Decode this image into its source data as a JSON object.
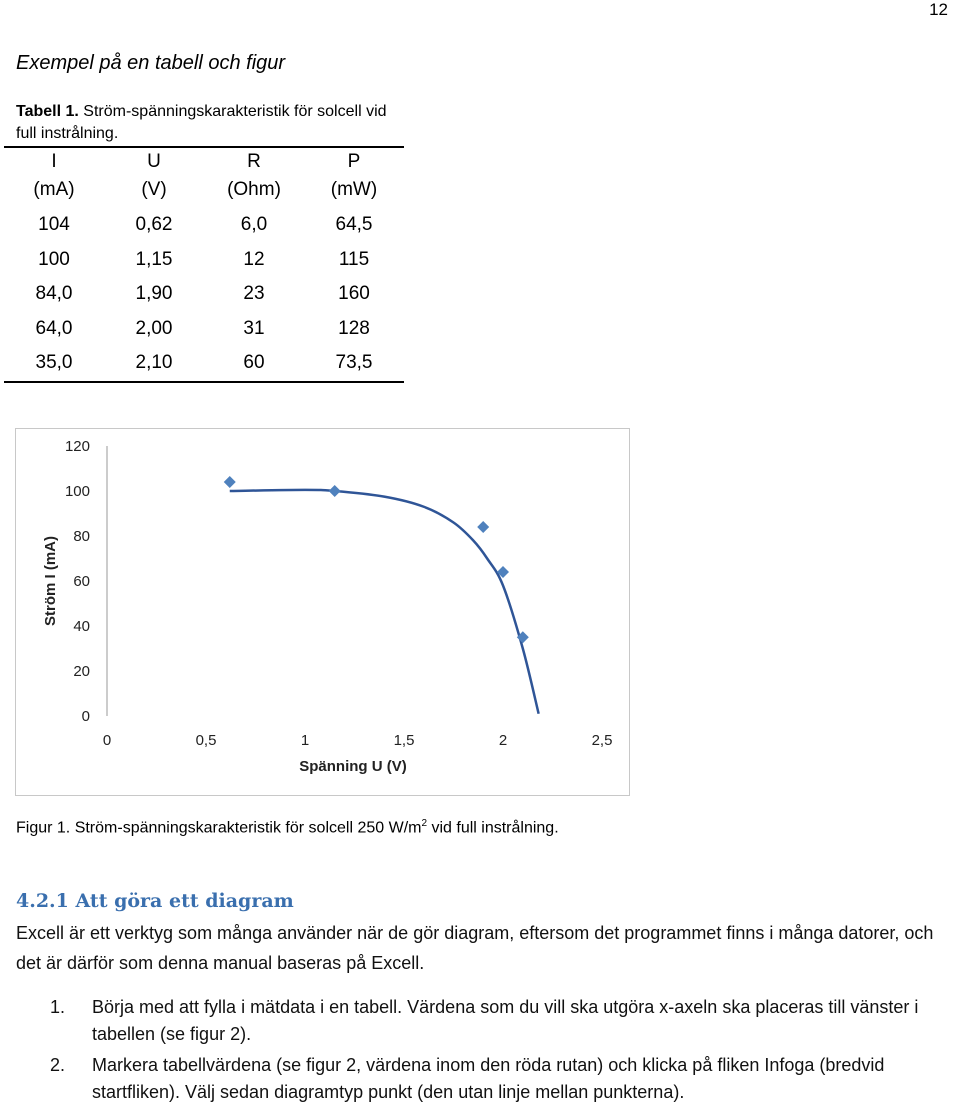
{
  "page_number": "12",
  "example_heading": "Exempel på en tabell och figur",
  "table": {
    "caption_label": "Tabell 1.",
    "caption_text": "Ström-spänningskarakteristik för solcell vid full instrålning.",
    "headers": [
      "I",
      "U",
      "R",
      "P"
    ],
    "units": [
      "(mA)",
      "(V)",
      "(Ohm)",
      "(mW)"
    ],
    "rows": [
      [
        "104",
        "0,62",
        "6,0",
        "64,5"
      ],
      [
        "100",
        "1,15",
        "12",
        "115"
      ],
      [
        "84,0",
        "1,90",
        "23",
        "160"
      ],
      [
        "64,0",
        "2,00",
        "31",
        "128"
      ],
      [
        "35,0",
        "2,10",
        "60",
        "73,5"
      ]
    ]
  },
  "chart_data": {
    "type": "scatter",
    "title": "",
    "xlabel": "Spänning U (V)",
    "ylabel": "Ström I (mA)",
    "xlim": [
      0,
      2.5
    ],
    "ylim": [
      0,
      120
    ],
    "x_ticks": [
      "0",
      "0,5",
      "1",
      "1,5",
      "2",
      "2,5"
    ],
    "y_ticks": [
      "0",
      "20",
      "40",
      "60",
      "80",
      "100",
      "120"
    ],
    "grid": false,
    "legend": "none",
    "color": "#4f81bd",
    "line_color": "#2f5597",
    "series": [
      {
        "x": [
          0.62,
          1.15,
          1.9,
          2.0,
          2.1
        ],
        "y": [
          104,
          100,
          84,
          64,
          35
        ]
      }
    ],
    "trend_line": {
      "x": [
        0.62,
        1.0,
        1.15,
        1.4,
        1.6,
        1.75,
        1.85,
        1.92,
        2.0,
        2.1,
        2.18
      ],
      "y": [
        100,
        100.5,
        100,
        97.5,
        93,
        86,
        78,
        70,
        58,
        30,
        1
      ]
    }
  },
  "figure_caption": {
    "text_before": "Figur 1. Ström-spänningskarakteristik för solcell 250 W/m",
    "superscript": "2",
    "text_after": " vid full instrålning."
  },
  "section": {
    "heading": "4.2.1 Att göra ett diagram",
    "paragraph": "Excell är ett verktyg som många använder när de gör diagram, eftersom det programmet finns i många datorer, och det är därför som denna manual baseras på Excell.",
    "list": [
      {
        "num": "1.",
        "text": "Börja med att fylla i mätdata i en tabell. Värdena som du vill ska utgöra x-axeln ska placeras till vänster i tabellen (se figur 2)."
      },
      {
        "num": "2.",
        "text": "Markera tabellvärdena (se figur 2, värdena inom den röda rutan) och klicka på fliken Infoga (bredvid startfliken). Välj sedan diagramtyp punkt (den utan linje mellan punkterna)."
      }
    ]
  }
}
